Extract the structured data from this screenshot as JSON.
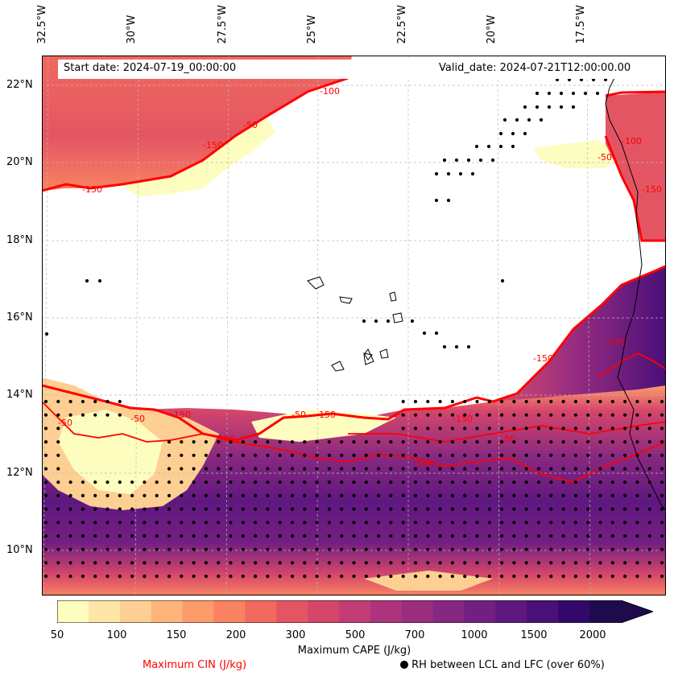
{
  "map": {
    "longitude_labels": [
      "32.5°W",
      "30°W",
      "27.5°W",
      "25°W",
      "22.5°W",
      "20°W",
      "17.5°W"
    ],
    "latitude_labels": [
      "22°N",
      "20°N",
      "18°N",
      "16°N",
      "14°N",
      "12°N",
      "10°N"
    ],
    "start_date": "Start date: 2024-07-19_00:00:00",
    "valid_date": "Valid_date: 2024-07-21T12:00:00.00",
    "cin_contour_labels": [
      "-100",
      "-50",
      "-150",
      "-150",
      "-50",
      "-50",
      "-150",
      "-100",
      "-50",
      "-150",
      "-100",
      "-150",
      "-50",
      "-150",
      "-50",
      "-100",
      "-150",
      "-150"
    ]
  },
  "colorbar": {
    "title": "Maximum CAPE (J/kg)",
    "tick_labels": [
      "50",
      "100",
      "150",
      "200",
      "300",
      "500",
      "700",
      "1000",
      "1500",
      "2000"
    ],
    "colors": [
      "#fcfdbf",
      "#fee7a6",
      "#fecf92",
      "#feb47b",
      "#fd9b6b",
      "#f98261",
      "#f1695f",
      "#e45563",
      "#d5466b",
      "#c23c75",
      "#ad347c",
      "#9a2d80",
      "#862781",
      "#731f81",
      "#5f187f",
      "#4a1079",
      "#32096b",
      "#1f0a4d"
    ]
  },
  "legend": {
    "cin_label": "Maximum CIN (J/kg)",
    "rh_label": "RH between LCL and LFC (over 60%)",
    "cin_color": "#ff0000"
  }
}
